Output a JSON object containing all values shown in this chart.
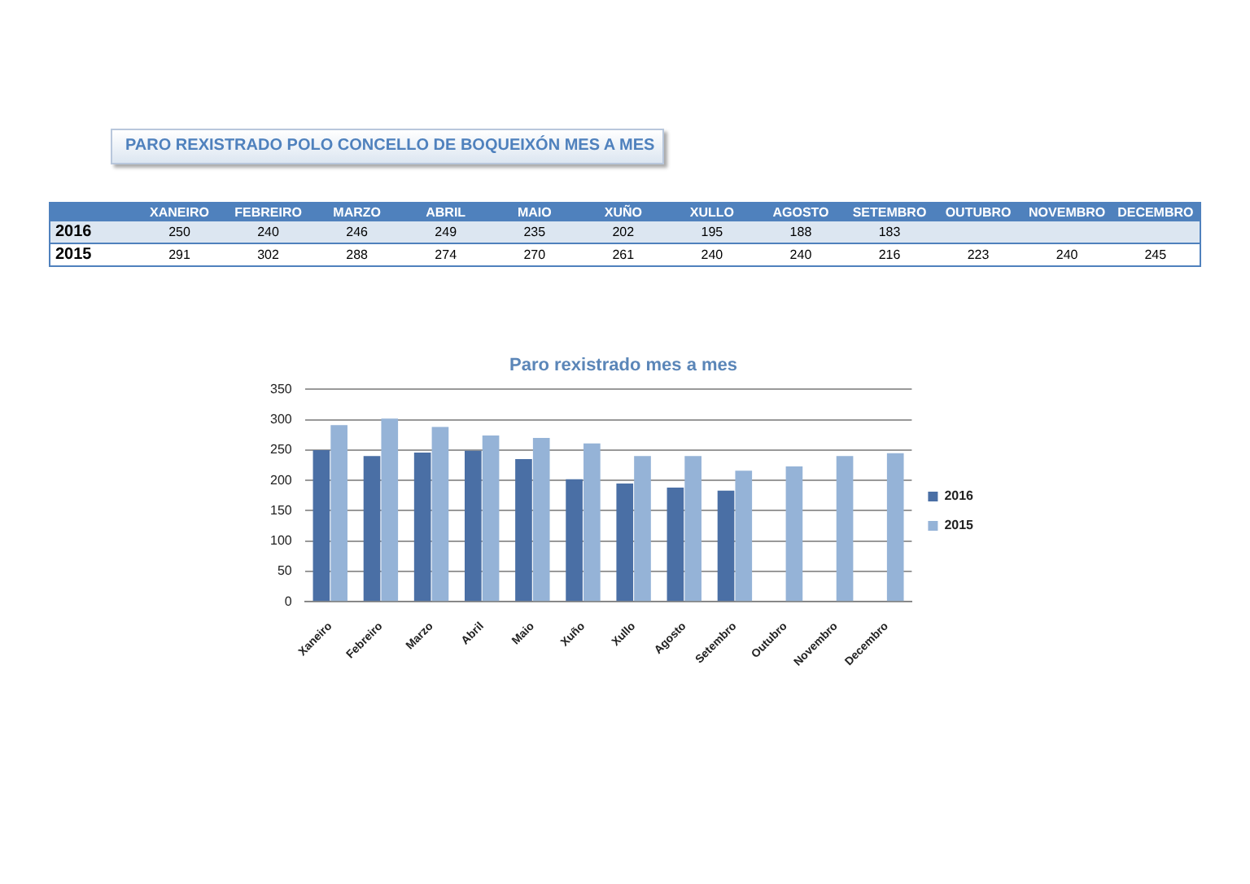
{
  "chart_data": [
    {
      "type": "other",
      "title": "PARO REXISTRADO POLO CONCELLO DE BOQUEIXÓN MES A MES",
      "categories": [
        "XANEIRO",
        "FEBREIRO",
        "MARZO",
        "ABRIL",
        "MAIO",
        "XUÑO",
        "XULLO",
        "AGOSTO",
        "SETEMBRO",
        "OUTUBRO",
        "NOVEMBRO",
        "DECEMBRO"
      ],
      "series": [
        {
          "name": "2016",
          "values": [
            250,
            240,
            246,
            249,
            235,
            202,
            195,
            188,
            183,
            null,
            null,
            null
          ]
        },
        {
          "name": "2015",
          "values": [
            291,
            302,
            288,
            274,
            270,
            261,
            240,
            240,
            216,
            223,
            240,
            245
          ]
        }
      ],
      "data_labels": true
    },
    {
      "type": "bar",
      "title": "Paro rexistrado mes a mes",
      "categories": [
        "Xaneiro",
        "Febreiro",
        "Marzo",
        "Abril",
        "Maio",
        "Xuño",
        "Xullo",
        "Agosto",
        "Setembro",
        "Outubro",
        "Novembro",
        "Decembro"
      ],
      "series": [
        {
          "name": "2016",
          "color": "#4a6fa5",
          "values": [
            250,
            240,
            246,
            249,
            235,
            202,
            195,
            188,
            183,
            null,
            null,
            null
          ]
        },
        {
          "name": "2015",
          "color": "#95b3d7",
          "values": [
            291,
            302,
            288,
            274,
            270,
            261,
            240,
            240,
            216,
            223,
            240,
            245
          ]
        }
      ],
      "ylim": [
        0,
        350
      ],
      "yticks": [
        0,
        50,
        100,
        150,
        200,
        250,
        300,
        350
      ],
      "grid": "y",
      "legend": "right"
    }
  ]
}
